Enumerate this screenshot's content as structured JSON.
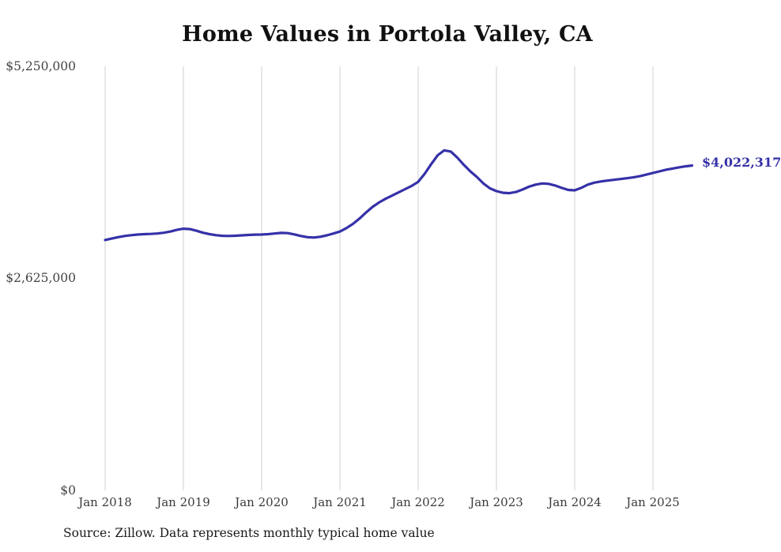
{
  "page": {
    "source_note": "Source: Zillow. Data represents monthly typical home value"
  },
  "chart_data": {
    "type": "line",
    "title": "Home Values in Portola Valley, CA",
    "series_name": "Typical home value",
    "unit": "USD",
    "grid": "vertical-only",
    "legend": "none",
    "line_color": "#3531a8",
    "grid_color": "#cfcfcf",
    "ylim": [
      0,
      5250000
    ],
    "y_ticks": [
      5250000,
      2625000,
      0
    ],
    "y_tick_labels": [
      "$5,250,000",
      "$2,625,000",
      "$0"
    ],
    "x_tick_labels": [
      "Jan 2018",
      "Jan 2019",
      "Jan 2020",
      "Jan 2021",
      "Jan 2022",
      "Jan 2023",
      "Jan 2024",
      "Jan 2025"
    ],
    "end_label": "$4,022,317",
    "end_value": 4022317,
    "x": [
      "2018-01",
      "2018-02",
      "2018-03",
      "2018-04",
      "2018-05",
      "2018-06",
      "2018-07",
      "2018-08",
      "2018-09",
      "2018-10",
      "2018-11",
      "2018-12",
      "2019-01",
      "2019-02",
      "2019-03",
      "2019-04",
      "2019-05",
      "2019-06",
      "2019-07",
      "2019-08",
      "2019-09",
      "2019-10",
      "2019-11",
      "2019-12",
      "2020-01",
      "2020-02",
      "2020-03",
      "2020-04",
      "2020-05",
      "2020-06",
      "2020-07",
      "2020-08",
      "2020-09",
      "2020-10",
      "2020-11",
      "2020-12",
      "2021-01",
      "2021-02",
      "2021-03",
      "2021-04",
      "2021-05",
      "2021-06",
      "2021-07",
      "2021-08",
      "2021-09",
      "2021-10",
      "2021-11",
      "2021-12",
      "2022-01",
      "2022-02",
      "2022-03",
      "2022-04",
      "2022-05",
      "2022-06",
      "2022-07",
      "2022-08",
      "2022-09",
      "2022-10",
      "2022-11",
      "2022-12",
      "2023-01",
      "2023-02",
      "2023-03",
      "2023-04",
      "2023-05",
      "2023-06",
      "2023-07",
      "2023-08",
      "2023-09",
      "2023-10",
      "2023-11",
      "2023-12",
      "2024-01",
      "2024-02",
      "2024-03",
      "2024-04",
      "2024-05",
      "2024-06",
      "2024-07",
      "2024-08",
      "2024-09",
      "2024-10",
      "2024-11",
      "2024-12",
      "2025-01",
      "2025-02",
      "2025-03",
      "2025-04",
      "2025-05",
      "2025-06",
      "2025-07"
    ],
    "values": [
      3100000,
      3118000,
      3135000,
      3150000,
      3160000,
      3168000,
      3172000,
      3175000,
      3180000,
      3190000,
      3205000,
      3225000,
      3240000,
      3235000,
      3215000,
      3190000,
      3172000,
      3160000,
      3152000,
      3150000,
      3153000,
      3158000,
      3163000,
      3167000,
      3168000,
      3172000,
      3180000,
      3188000,
      3185000,
      3170000,
      3150000,
      3135000,
      3130000,
      3140000,
      3158000,
      3180000,
      3205000,
      3248000,
      3300000,
      3365000,
      3440000,
      3510000,
      3565000,
      3610000,
      3650000,
      3690000,
      3730000,
      3770000,
      3820000,
      3920000,
      4040000,
      4150000,
      4210000,
      4195000,
      4120000,
      4030000,
      3950000,
      3880000,
      3800000,
      3740000,
      3705000,
      3685000,
      3680000,
      3695000,
      3725000,
      3760000,
      3785000,
      3800000,
      3795000,
      3775000,
      3745000,
      3720000,
      3715000,
      3745000,
      3785000,
      3810000,
      3825000,
      3835000,
      3845000,
      3855000,
      3865000,
      3875000,
      3890000,
      3910000,
      3930000,
      3950000,
      3970000,
      3985000,
      4000000,
      4012000,
      4022317
    ]
  }
}
